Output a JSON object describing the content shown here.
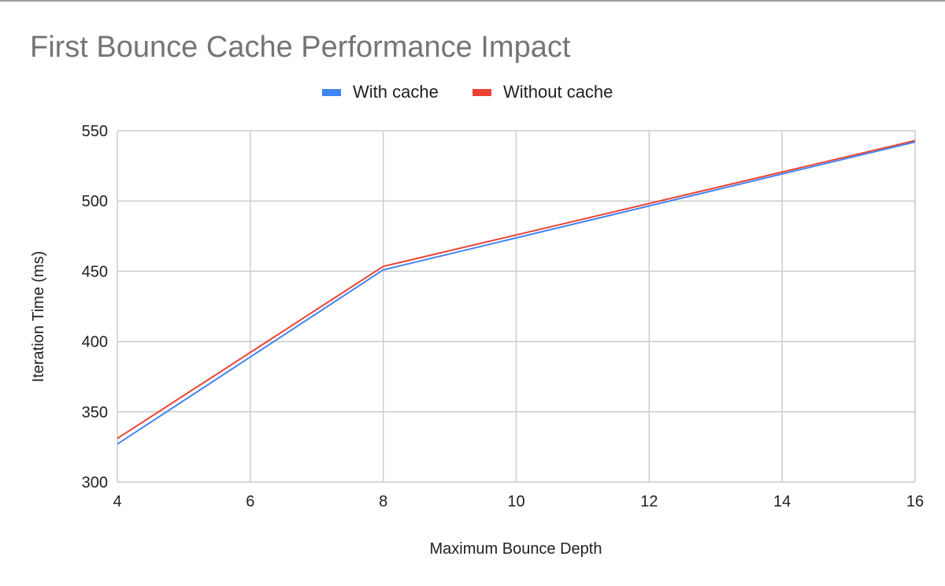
{
  "chart_data": {
    "type": "line",
    "title": "First Bounce Cache Performance Impact",
    "xlabel": "Maximum Bounce Depth",
    "ylabel": "Iteration Time (ms)",
    "x": [
      4,
      8,
      16
    ],
    "xlim": [
      4,
      16
    ],
    "ylim": [
      300,
      550
    ],
    "xticks": [
      "4",
      "6",
      "8",
      "10",
      "12",
      "14",
      "16"
    ],
    "yticks": [
      "300",
      "350",
      "400",
      "450",
      "500",
      "550"
    ],
    "grid": true,
    "legend_position": "top",
    "series": [
      {
        "name": "With cache",
        "color": "#4285f4",
        "values": [
          327,
          451,
          542
        ]
      },
      {
        "name": "Without cache",
        "color": "#ea4335",
        "values": [
          331,
          453.5,
          543
        ]
      }
    ]
  }
}
